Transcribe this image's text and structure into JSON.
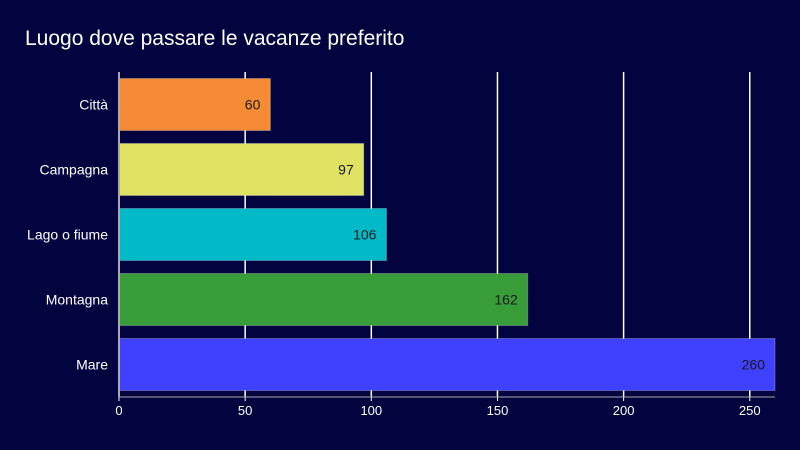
{
  "chart_data": {
    "type": "bar",
    "orientation": "horizontal",
    "title": "Luogo dove passare le vacanze preferito",
    "xlabel": "",
    "ylabel": "",
    "categories": [
      "Città",
      "Campagna",
      "Lago o fiume",
      "Montagna",
      "Mare"
    ],
    "values": [
      60,
      97,
      106,
      162,
      260
    ],
    "data_labels": [
      "60",
      "97",
      "106",
      "162",
      "260"
    ],
    "colors": [
      "#f58b35",
      "#dfe262",
      "#00bac8",
      "#389c38",
      "#4040ff"
    ],
    "xlim": [
      0,
      260
    ],
    "x_ticks": [
      0,
      50,
      100,
      150,
      200,
      250
    ],
    "x_tick_labels": [
      "0",
      "50",
      "100",
      "150",
      "200",
      "250"
    ],
    "grid": true,
    "legend": "none"
  },
  "colors": {
    "background": "#02033f",
    "text": "#ffffff",
    "grid": "#ffffff",
    "data_label": "#1a1a1a"
  }
}
